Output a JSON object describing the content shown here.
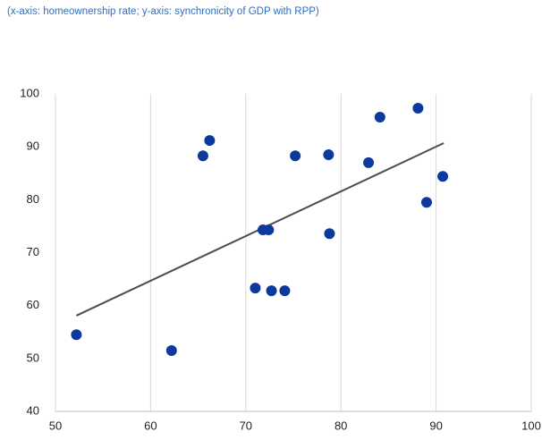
{
  "chart_data": {
    "type": "scatter",
    "subtitle": "(x-axis: homeownership rate; y-axis: synchronicity of GDP with RPP)",
    "series": [
      {
        "color": "#0b3a9c",
        "x": [
          52.2,
          62.2,
          65.5,
          66.2,
          71.0,
          71.8,
          72.4,
          72.7,
          74.1,
          75.2,
          78.7,
          78.8,
          82.9,
          84.1,
          88.1,
          89.0,
          90.7
        ],
        "values": [
          54.5,
          51.5,
          88.3,
          91.2,
          63.3,
          74.3,
          74.3,
          62.8,
          62.8,
          88.3,
          88.5,
          73.6,
          87.0,
          95.6,
          97.3,
          79.5,
          84.4
        ]
      }
    ],
    "trendline": {
      "color": "#4d4d4d",
      "x": [
        52.2,
        90.8
      ],
      "values": [
        58.1,
        90.7
      ]
    },
    "xlim": [
      50,
      100
    ],
    "xticks": [
      50,
      60,
      70,
      80,
      90,
      100
    ],
    "ylim": [
      40,
      100
    ],
    "yticks": [
      40,
      50,
      60,
      70,
      80,
      90,
      100
    ],
    "grid": true
  }
}
